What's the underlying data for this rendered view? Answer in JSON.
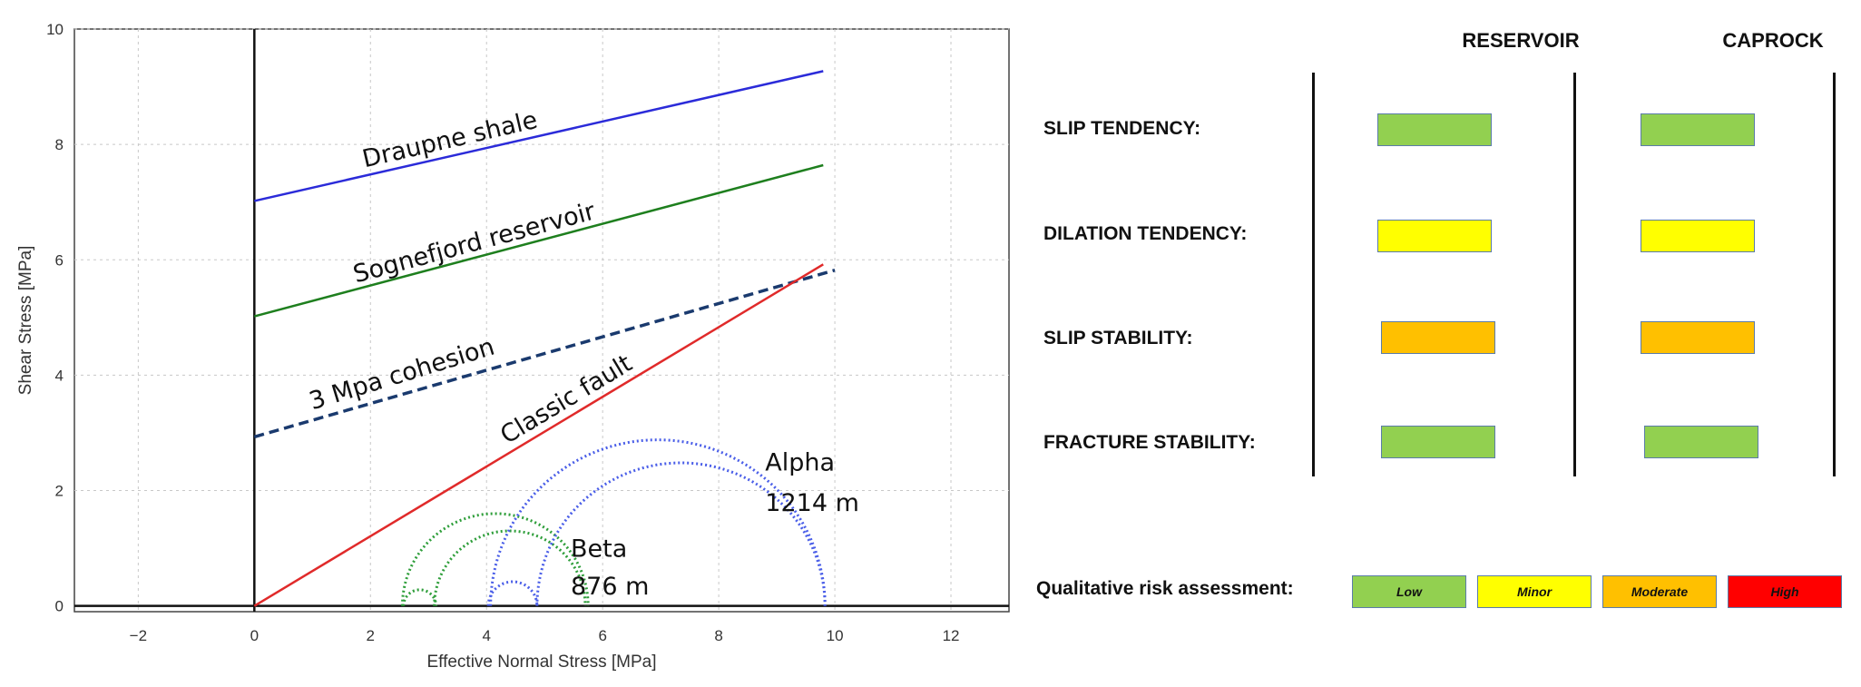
{
  "chart_data": {
    "type": "line",
    "xlabel": "Effective Normal Stress [MPa]",
    "ylabel": "Shear Stress [MPa]",
    "xlim": [
      -3.1,
      13
    ],
    "ylim": [
      -0.1,
      10
    ],
    "x_ticks": [
      -2,
      0,
      2,
      4,
      6,
      8,
      10,
      12
    ],
    "y_ticks": [
      0,
      2,
      4,
      6,
      8,
      10
    ],
    "grid": true,
    "series": [
      {
        "name": "Draupne shale",
        "style": "solid",
        "color": "#2b2bd9",
        "x": [
          0,
          9.8
        ],
        "y": [
          7.02,
          9.27
        ]
      },
      {
        "name": "Sognefjord reservoir",
        "style": "solid",
        "color": "#1e7f1e",
        "x": [
          0,
          9.8
        ],
        "y": [
          5.02,
          7.64
        ]
      },
      {
        "name": "3 Mpa cohesion",
        "style": "dashed",
        "color": "#1a3a6e",
        "x": [
          0,
          10
        ],
        "y": [
          2.93,
          5.82
        ]
      },
      {
        "name": "Classic fault",
        "style": "solid",
        "color": "#e02a2a",
        "x": [
          0,
          9.8
        ],
        "y": [
          0,
          5.92
        ]
      }
    ],
    "mohr_circles": [
      {
        "group": "Beta",
        "color": "#2e9e3a",
        "center": 4.15,
        "radius": 1.6
      },
      {
        "group": "Beta",
        "color": "#2e9e3a",
        "center": 4.4,
        "radius": 1.3
      },
      {
        "group": "Beta",
        "color": "#2e9e3a",
        "center": 2.85,
        "radius": 0.28
      },
      {
        "group": "Alpha",
        "color": "#4a5ee8",
        "center": 6.95,
        "radius": 2.88
      },
      {
        "group": "Alpha",
        "color": "#4a5ee8",
        "center": 7.35,
        "radius": 2.48
      },
      {
        "group": "Alpha",
        "color": "#4a5ee8",
        "center": 4.45,
        "radius": 0.42
      }
    ],
    "annotations": [
      {
        "text": "Draupne shale",
        "x": 1.9,
        "y": 7.6,
        "angle": -13
      },
      {
        "text": "Sognefjord reservoir",
        "x": 1.75,
        "y": 5.6,
        "angle": -15
      },
      {
        "text": "3 Mpa cohesion",
        "x": 1.0,
        "y": 3.4,
        "angle": -17
      },
      {
        "text": "Classic fault",
        "x": 4.35,
        "y": 2.8,
        "angle": -31
      },
      {
        "text": "Alpha",
        "x": 8.8,
        "y": 2.35,
        "angle": 0
      },
      {
        "text": "1214 m",
        "x": 8.8,
        "y": 1.65,
        "angle": 0
      },
      {
        "text": "Beta",
        "x": 5.45,
        "y": 0.85,
        "angle": 0
      },
      {
        "text": "876 m",
        "x": 5.45,
        "y": 0.2,
        "angle": 0
      }
    ]
  },
  "assessment": {
    "columns": [
      "RESERVOIR",
      "CAPROCK"
    ],
    "rows": [
      {
        "label": "SLIP TENDENCY:",
        "reservoir": "low",
        "caprock": "low"
      },
      {
        "label": "DILATION TENDENCY:",
        "reservoir": "minor",
        "caprock": "minor"
      },
      {
        "label": "SLIP STABILITY:",
        "reservoir": "moderate",
        "caprock": "moderate"
      },
      {
        "label": "FRACTURE STABILITY:",
        "reservoir": "low",
        "caprock": "low"
      }
    ],
    "legend_title": "Qualitative risk assessment:",
    "legend": [
      {
        "key": "low",
        "label": "Low",
        "color": "#92d050"
      },
      {
        "key": "minor",
        "label": "Minor",
        "color": "#ffff00"
      },
      {
        "key": "moderate",
        "label": "Moderate",
        "color": "#ffc000"
      },
      {
        "key": "high",
        "label": "High",
        "color": "#ff0000"
      }
    ]
  }
}
